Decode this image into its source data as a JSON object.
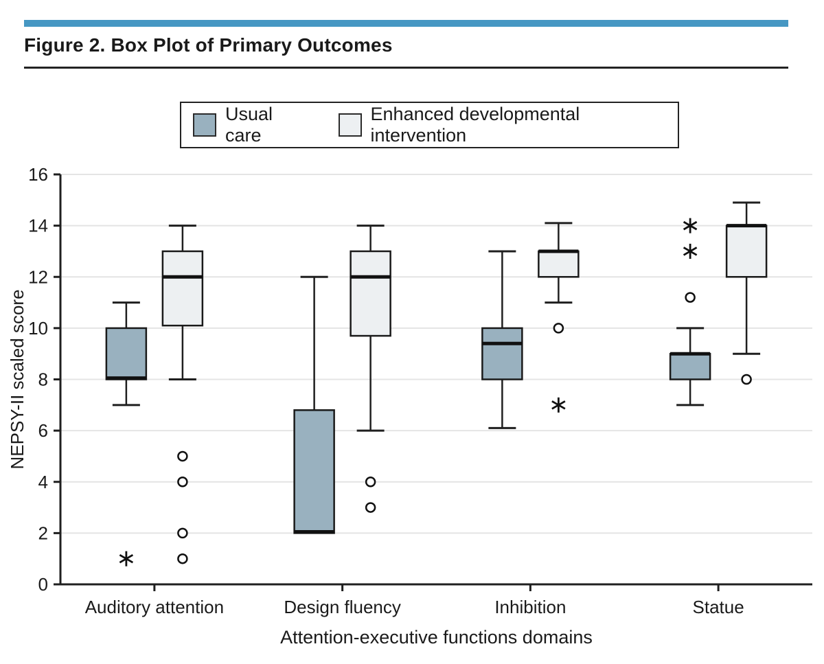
{
  "header": {
    "title": "Figure 2. Box Plot of Primary Outcomes"
  },
  "colors": {
    "accent_bar": "#4697c3",
    "axis": "#1f1f1f",
    "gridline": "#e4e4e4",
    "text": "#1a1a1a",
    "median": "#111111",
    "outlier_fill": "#ffffff",
    "usual_care_fill": "#99b1bf",
    "intervention_fill": "#edf0f2"
  },
  "chart_data": {
    "type": "boxplot",
    "title": "Figure 2. Box Plot of Primary Outcomes",
    "xlabel": "Attention-executive functions domains",
    "ylabel": "NEPSY-II scaled score",
    "ylim": [
      0,
      16
    ],
    "yticks": [
      0,
      2,
      4,
      6,
      8,
      10,
      12,
      14,
      16
    ],
    "grid": true,
    "legend_position": "top-center",
    "categories": [
      "Auditory attention",
      "Design fluency",
      "Inhibition",
      "Statue"
    ],
    "series": [
      {
        "name": "Usual care",
        "color_key": "usual_care_fill",
        "boxes": [
          {
            "whislo": 7,
            "q1": 8,
            "med": 8.05,
            "q3": 10,
            "whishi": 11,
            "outliers": [],
            "extremes": [
              1
            ]
          },
          {
            "whislo": 2,
            "q1": 2,
            "med": 2.05,
            "q3": 6.8,
            "whishi": 12,
            "outliers": [],
            "extremes": []
          },
          {
            "whislo": 6.1,
            "q1": 8,
            "med": 9.4,
            "q3": 10,
            "whishi": 13,
            "outliers": [],
            "extremes": []
          },
          {
            "whislo": 7,
            "q1": 8,
            "med": 9,
            "q3": 9,
            "whishi": 10,
            "outliers": [
              11.2
            ],
            "extremes": [
              13,
              14
            ]
          }
        ]
      },
      {
        "name": "Enhanced developmental intervention",
        "color_key": "intervention_fill",
        "boxes": [
          {
            "whislo": 8,
            "q1": 10.1,
            "med": 12,
            "q3": 13,
            "whishi": 14,
            "outliers": [
              5,
              4,
              2,
              1
            ],
            "extremes": []
          },
          {
            "whislo": 6,
            "q1": 9.7,
            "med": 12,
            "q3": 13,
            "whishi": 14,
            "outliers": [
              4,
              3
            ],
            "extremes": []
          },
          {
            "whislo": 11,
            "q1": 12,
            "med": 13,
            "q3": 13,
            "whishi": 14.1,
            "outliers": [
              10
            ],
            "extremes": [
              7
            ]
          },
          {
            "whislo": 9,
            "q1": 12,
            "med": 14,
            "q3": 14,
            "whishi": 14.9,
            "outliers": [
              8
            ],
            "extremes": []
          }
        ]
      }
    ]
  }
}
